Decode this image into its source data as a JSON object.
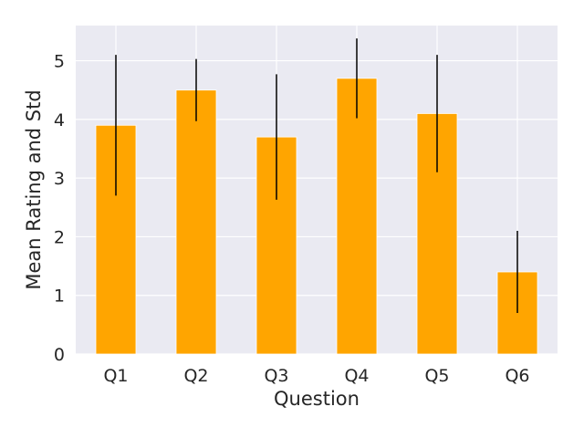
{
  "chart_data": {
    "type": "bar",
    "xlabel": "Question",
    "ylabel": "Mean Rating and Std",
    "categories": [
      "Q1",
      "Q2",
      "Q3",
      "Q4",
      "Q5",
      "Q6"
    ],
    "values": [
      3.9,
      4.5,
      3.7,
      4.7,
      4.1,
      1.4
    ],
    "std": [
      1.2,
      0.53,
      1.07,
      0.68,
      1.0,
      0.7
    ],
    "ylim": [
      0,
      5.6
    ],
    "yticks": [
      0,
      1,
      2,
      3,
      4,
      5
    ],
    "grid": true,
    "colors": {
      "bar": "#FFA500",
      "errorbar": "#000000",
      "background": "#EAEAF2",
      "grid": "#FFFFFF"
    }
  }
}
